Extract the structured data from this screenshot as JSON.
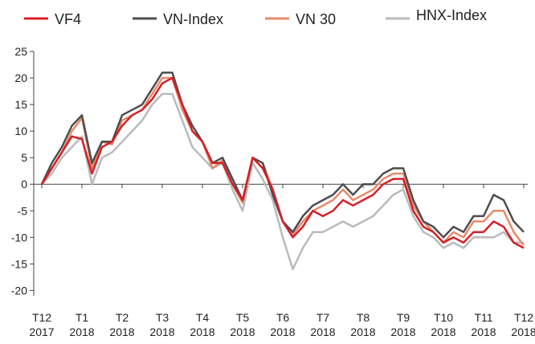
{
  "chart_data": {
    "type": "line",
    "categories": [
      [
        "T12",
        "2017"
      ],
      [
        "T1",
        "2018"
      ],
      [
        "T2",
        "2018"
      ],
      [
        "T3",
        "2018"
      ],
      [
        "T4",
        "2018"
      ],
      [
        "T5",
        "2018"
      ],
      [
        "T6",
        "2018"
      ],
      [
        "T7",
        "2018"
      ],
      [
        "T8",
        "2018"
      ],
      [
        "T9",
        "2018"
      ],
      [
        "T10",
        "2018"
      ],
      [
        "T11",
        "2018"
      ],
      [
        "T12",
        "2018"
      ]
    ],
    "x": [
      0,
      0.25,
      0.5,
      0.75,
      1,
      1.25,
      1.5,
      1.75,
      2,
      2.25,
      2.5,
      2.75,
      3,
      3.25,
      3.5,
      3.75,
      4,
      4.25,
      4.5,
      4.75,
      5,
      5.25,
      5.5,
      5.75,
      6,
      6.25,
      6.5,
      6.75,
      7,
      7.25,
      7.5,
      7.75,
      8,
      8.25,
      8.5,
      8.75,
      9,
      9.25,
      9.5,
      9.75,
      10,
      10.25,
      10.5,
      10.75,
      11,
      11.25,
      11.5,
      11.75,
      12
    ],
    "xlim": [
      0,
      12
    ],
    "series": [
      {
        "name": "HNX-Index",
        "color": "#b9babc",
        "values": [
          0,
          2,
          5,
          7,
          9,
          0,
          5,
          6,
          8,
          10,
          12,
          15,
          17,
          17,
          12,
          7,
          5,
          3,
          4,
          -1,
          -5,
          4,
          1,
          -3,
          -10,
          -16,
          -12,
          -9,
          -9,
          -8,
          -7,
          -8,
          -7,
          -6,
          -4,
          -2,
          -1,
          -6,
          -9,
          -10,
          -12,
          -11,
          -12,
          -10,
          -10,
          -10,
          -9,
          -11,
          -11
        ]
      },
      {
        "name": "VN 30",
        "color": "#e8896b",
        "values": [
          0,
          3,
          6,
          10,
          12.5,
          3,
          8,
          7.5,
          12,
          13,
          14,
          17,
          20,
          20,
          14,
          10,
          8,
          3,
          4.5,
          0,
          -3.5,
          5,
          4,
          -1,
          -7,
          -9.5,
          -7,
          -5,
          -4,
          -3,
          -1,
          -3,
          -2,
          -1,
          1,
          2,
          2,
          -4,
          -7,
          -9,
          -11,
          -9,
          -10,
          -7,
          -7,
          -5,
          -5,
          -9,
          -11.5
        ]
      },
      {
        "name": "VN-Index",
        "color": "#4d4d4f",
        "values": [
          0,
          4,
          7,
          11,
          13,
          4,
          8,
          8,
          13,
          14,
          15,
          18,
          21,
          21,
          15,
          11,
          8,
          4,
          5,
          1,
          -3,
          5,
          4,
          -2,
          -7,
          -9,
          -6,
          -4,
          -3,
          -2,
          0,
          -2,
          0,
          0,
          2,
          3,
          3,
          -3,
          -7,
          -8,
          -10,
          -8,
          -9,
          -6,
          -6,
          -2,
          -3,
          -7,
          -9
        ]
      },
      {
        "name": "VF4",
        "color": "#d42027",
        "values": [
          0,
          3,
          6,
          9,
          8.5,
          2,
          7,
          8,
          11,
          13,
          14,
          16,
          19,
          20,
          15,
          10,
          8,
          4,
          4,
          0,
          -3,
          5,
          3,
          -1,
          -7,
          -10,
          -8,
          -5,
          -6,
          -5,
          -3,
          -4,
          -3,
          -2,
          0,
          1,
          1,
          -5,
          -8,
          -9,
          -11,
          -10,
          -11,
          -9,
          -9,
          -7,
          -8,
          -11,
          -12
        ]
      }
    ],
    "legend_order": [
      3,
      2,
      1,
      0
    ],
    "ylim": [
      -21,
      25
    ],
    "yticks": [
      -20,
      -15,
      -10,
      -5,
      0,
      5,
      10,
      15,
      20,
      25
    ]
  }
}
